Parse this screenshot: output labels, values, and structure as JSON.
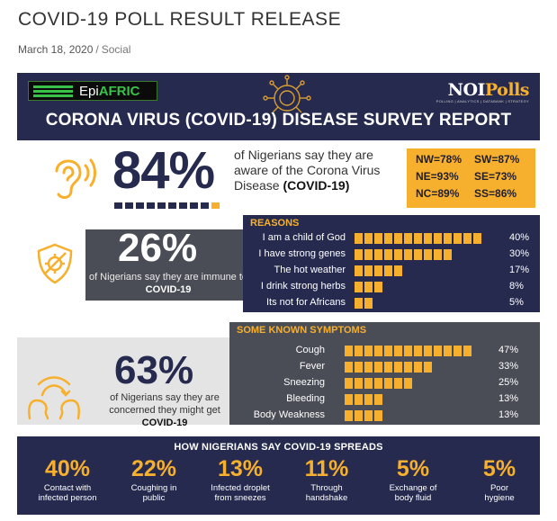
{
  "post": {
    "title": "COVID-19 POLL RESULT RELEASE",
    "date": "March 18, 2020",
    "separator": "/",
    "category": "Social"
  },
  "infographic": {
    "logo_left": {
      "brand_a": "Epi",
      "brand_b": "AFRIC"
    },
    "logo_right": {
      "brand_a": "NOI",
      "brand_b": "Polls",
      "tagline": "POLLING | ANALYTICS | DATABANK | STRATEGY"
    },
    "title": "CORONA VIRUS (COVID-19) DISEASE SURVEY REPORT",
    "awareness": {
      "percent": "84%",
      "fraction": 0.84,
      "text_a": "of Nigerians say they are aware of the Corona Virus Disease ",
      "text_b": "(COVID-19)",
      "regions": [
        {
          "label": "NW=78%"
        },
        {
          "label": "SW=87%"
        },
        {
          "label": "NE=93%"
        },
        {
          "label": "SE=73%"
        },
        {
          "label": "NC=89%"
        },
        {
          "label": "SS=86%"
        }
      ]
    },
    "immunity": {
      "percent": "26%",
      "caption_a": "of Nigerians say they are immune to ",
      "caption_b": "COVID-19",
      "reasons_title": "REASONS",
      "reasons": [
        {
          "label": "I am a child of God",
          "value": 40,
          "value_label": "40%"
        },
        {
          "label": "I have strong genes",
          "value": 30,
          "value_label": "30%"
        },
        {
          "label": "The hot weather",
          "value": 17,
          "value_label": "17%"
        },
        {
          "label": "I drink strong herbs",
          "value": 8,
          "value_label": "8%"
        },
        {
          "label": "Its not for Africans",
          "value": 5,
          "value_label": "5%"
        }
      ]
    },
    "concern": {
      "percent": "63%",
      "caption_a": "of Nigerians say they are concerned they might get ",
      "caption_b": "COVID-19",
      "symptoms_title": "SOME KNOWN SYMPTOMS",
      "symptoms": [
        {
          "label": "Cough",
          "value": 47,
          "value_label": "47%"
        },
        {
          "label": "Fever",
          "value": 33,
          "value_label": "33%"
        },
        {
          "label": "Sneezing",
          "value": 25,
          "value_label": "25%"
        },
        {
          "label": "Bleeding",
          "value": 13,
          "value_label": "13%"
        },
        {
          "label": "Body Weakness",
          "value": 13,
          "value_label": "13%"
        }
      ]
    },
    "spread": {
      "title": "HOW NIGERIANS SAY COVID-19 SPREADS",
      "items": [
        {
          "percent": "40%",
          "label_a": "Contact with",
          "label_b": "infected person"
        },
        {
          "percent": "22%",
          "label_a": "Coughing in",
          "label_b": "public"
        },
        {
          "percent": "13%",
          "label_a": "Infected droplet",
          "label_b": "from sneezes"
        },
        {
          "percent": "11%",
          "label_a": "Through",
          "label_b": "handshake"
        },
        {
          "percent": "5%",
          "label_a": "Exchange of",
          "label_b": "body fluid"
        },
        {
          "percent": "5%",
          "label_a": "Poor",
          "label_b": "hygiene"
        }
      ]
    },
    "colors": {
      "navy": "#262a4f",
      "gold": "#f7b02d",
      "gray": "#4b4d56"
    }
  }
}
